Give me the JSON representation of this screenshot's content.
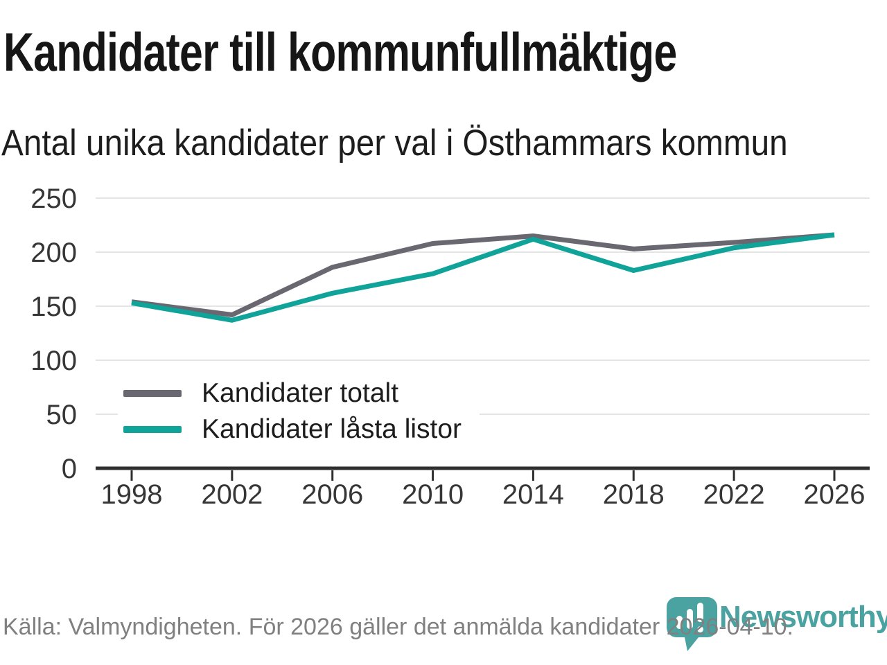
{
  "chart_data": {
    "type": "line",
    "title": "Kandidater till kommunfullmäktige",
    "subtitle": "Antal unika kandidater per val i Östhammars kommun",
    "categories": [
      "1998",
      "2002",
      "2006",
      "2010",
      "2014",
      "2018",
      "2022",
      "2026"
    ],
    "series": [
      {
        "name": "Kandidater totalt",
        "color": "#696770",
        "values": [
          154,
          142,
          186,
          208,
          215,
          203,
          209,
          216
        ]
      },
      {
        "name": "Kandidater låsta listor",
        "color": "#10a399",
        "values": [
          153,
          137,
          162,
          180,
          212,
          183,
          204,
          216
        ]
      }
    ],
    "ylim": [
      0,
      250
    ],
    "yticks": [
      0,
      50,
      100,
      150,
      200,
      250
    ],
    "grid": true,
    "legend_position": "inside-top-left"
  },
  "footer": {
    "source": "Källa: Valmyndigheten. För 2026 gäller det anmälda kandidater 2026-04-10."
  },
  "brand": {
    "name": "Newsworthy",
    "color": "#4aa3a1"
  },
  "theme": {
    "grid_color": "#e4e4e4",
    "axis_color": "#2f2f2f",
    "tick_label_color": "#363636",
    "line_width": 7
  }
}
